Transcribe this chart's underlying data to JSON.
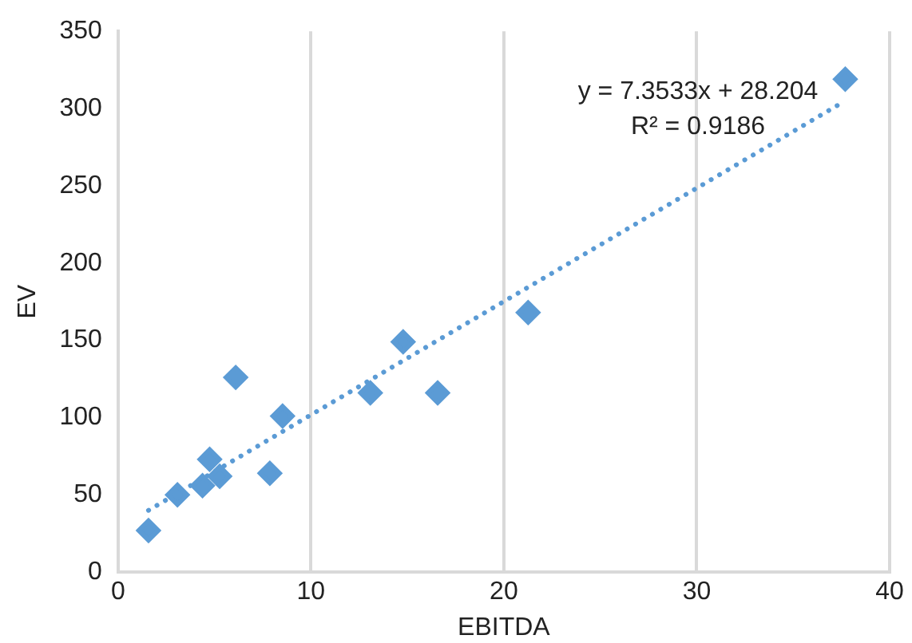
{
  "chart_data": {
    "type": "scatter",
    "xlabel": "EBITDA",
    "ylabel": "EV",
    "xlim": [
      0,
      40
    ],
    "xticks": [
      0,
      10,
      20,
      30,
      40
    ],
    "ylim": [
      0,
      350
    ],
    "yticks": [
      0,
      50,
      100,
      150,
      200,
      250,
      300,
      350
    ],
    "grid": "x",
    "legend": false,
    "series": [
      {
        "type": "scatter",
        "color": "#5b9bd5",
        "marker": "diamond",
        "x": [
          1.58,
          3.08,
          4.38,
          4.75,
          5.27,
          6.1,
          7.87,
          8.53,
          13.08,
          14.78,
          16.57,
          21.26,
          37.7
        ],
        "values": [
          27,
          50,
          56,
          73,
          62,
          126,
          64,
          101,
          116,
          149,
          116,
          168,
          319
        ]
      },
      {
        "type": "line",
        "color": "#5b9bd5",
        "line_style": "dotted",
        "marker": "none",
        "x": [
          1.58,
          37.7
        ],
        "values": [
          40,
          305
        ]
      }
    ],
    "annotations": [
      "y = 7.3533x + 28.204",
      "R² = 0.9186"
    ]
  }
}
